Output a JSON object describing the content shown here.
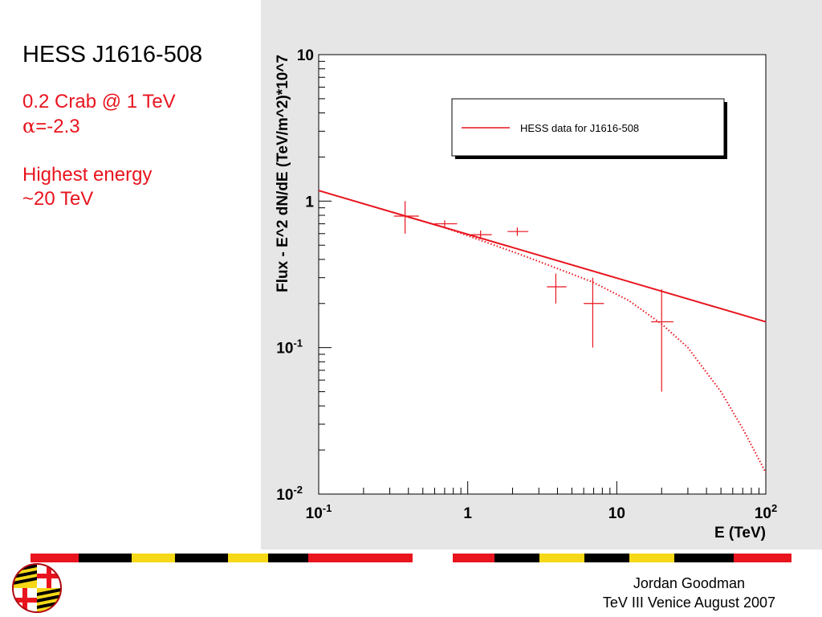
{
  "slide": {
    "title": "HESS J1616-508",
    "notes": {
      "flux_line": "0.2 Crab @ 1 TeV",
      "index_symbol": "α",
      "index_value": "=-2.3",
      "energy_heading": "Highest energy",
      "energy_value": "~20 TeV"
    },
    "footer": {
      "author": "Jordan Goodman",
      "event": "TeV III Venice August 2007"
    }
  },
  "colors": {
    "accent": "#e8141e",
    "panel": "#e6e6e6",
    "frame": "#000000"
  },
  "chart_data": {
    "type": "scatter",
    "title": "",
    "xlabel": "E (TeV)",
    "ylabel": "Flux - E^2 dN/dE (TeV/m^2)*10^7",
    "x_scale": "log",
    "y_scale": "log",
    "xlim": [
      0.1,
      100
    ],
    "ylim": [
      0.01,
      10
    ],
    "x_ticks": [
      {
        "value": 0.1,
        "label": "10",
        "exp": "-1"
      },
      {
        "value": 1,
        "label": "1",
        "exp": ""
      },
      {
        "value": 10,
        "label": "10",
        "exp": ""
      },
      {
        "value": 100,
        "label": "10",
        "exp": "2"
      }
    ],
    "y_ticks": [
      {
        "value": 10,
        "label": "10",
        "exp": ""
      },
      {
        "value": 1,
        "label": "1",
        "exp": ""
      },
      {
        "value": 0.1,
        "label": "10",
        "exp": "-1"
      },
      {
        "value": 0.01,
        "label": "10",
        "exp": "-2"
      }
    ],
    "grid": false,
    "legend": {
      "placement": "top-right",
      "entries": [
        "HESS data for J1616-508"
      ]
    },
    "series": [
      {
        "name": "HESS data for J1616-508",
        "style": "points-with-error-bars",
        "points": [
          {
            "x": 0.38,
            "y": 0.79,
            "y_lo": 0.6,
            "y_hi": 1.0,
            "x_lo": 0.32,
            "x_hi": 0.47
          },
          {
            "x": 0.7,
            "y": 0.7,
            "y_lo": 0.66,
            "y_hi": 0.74,
            "x_lo": 0.6,
            "x_hi": 0.85
          },
          {
            "x": 1.22,
            "y": 0.59,
            "y_lo": 0.55,
            "y_hi": 0.63,
            "x_lo": 1.05,
            "x_hi": 1.45
          },
          {
            "x": 2.15,
            "y": 0.62,
            "y_lo": 0.58,
            "y_hi": 0.66,
            "x_lo": 1.85,
            "x_hi": 2.55
          },
          {
            "x": 3.9,
            "y": 0.26,
            "y_lo": 0.2,
            "y_hi": 0.32,
            "x_lo": 3.4,
            "x_hi": 4.6
          },
          {
            "x": 6.9,
            "y": 0.2,
            "y_lo": 0.1,
            "y_hi": 0.3,
            "x_lo": 6.0,
            "x_hi": 8.2
          },
          {
            "x": 20,
            "y": 0.15,
            "y_lo": 0.05,
            "y_hi": 0.25,
            "x_lo": 17,
            "x_hi": 24
          }
        ]
      },
      {
        "style": "solid-line",
        "x": [
          0.1,
          100
        ],
        "y": [
          1.18,
          0.15
        ]
      },
      {
        "style": "dotted-line",
        "x": [
          0.38,
          0.7,
          1.22,
          2.15,
          3.9,
          6.9,
          12,
          20,
          30,
          50,
          70,
          100
        ],
        "y": [
          0.79,
          0.66,
          0.54,
          0.44,
          0.35,
          0.28,
          0.21,
          0.145,
          0.1,
          0.05,
          0.028,
          0.014
        ]
      }
    ]
  }
}
